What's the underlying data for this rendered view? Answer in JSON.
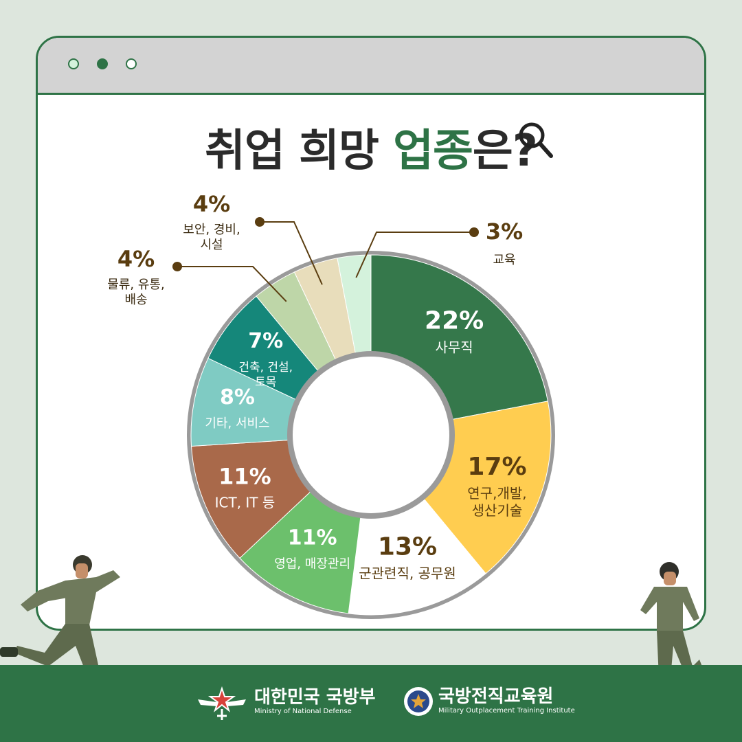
{
  "title": {
    "part1": "취업 희망 ",
    "highlight": "업종",
    "part2": "은?"
  },
  "chart_data": {
    "type": "pie",
    "unit": "%",
    "slices": [
      {
        "label": "사무직",
        "value": 22,
        "display": "22%",
        "color": "#35784b"
      },
      {
        "label": "연구,개발, 생산기술",
        "value": 17,
        "display": "17%",
        "color": "#ffcd50"
      },
      {
        "label": "군관련직, 공무원",
        "value": 13,
        "display": "13%",
        "color": "#ffffff"
      },
      {
        "label": "영업, 매장관리",
        "value": 11,
        "display": "11%",
        "color": "#6cc06c"
      },
      {
        "label": "ICT, IT 등",
        "value": 11,
        "display": "11%",
        "color": "#a9694a"
      },
      {
        "label": "기타, 서비스",
        "value": 8,
        "display": "8%",
        "color": "#7fcbc3"
      },
      {
        "label": "건축, 건설, 토목",
        "value": 7,
        "display": "7%",
        "color": "#15877a"
      },
      {
        "label": "물류, 유통, 배송",
        "value": 4,
        "display": "4%",
        "color": "#bed6a8"
      },
      {
        "label": "보안, 경비, 시설",
        "value": 4,
        "display": "4%",
        "color": "#e8ddbb"
      },
      {
        "label": "교육",
        "value": 3,
        "display": "3%",
        "color": "#d4f2dc"
      }
    ]
  },
  "footer": {
    "mnd_name": "대한민국 국방부",
    "mnd_sub": "Ministry of National Defense",
    "inst_name": "국방전직교육원",
    "inst_sub": "Military Outplacement Training Institute"
  }
}
